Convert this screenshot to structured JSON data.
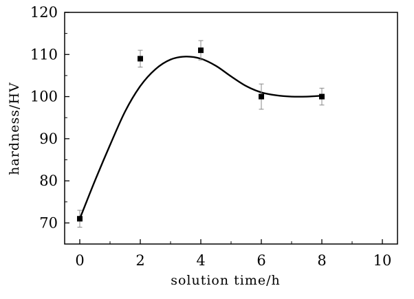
{
  "chart_data": {
    "type": "scatter",
    "xlabel": "solution time/h",
    "ylabel": "hardness/HV",
    "xlim": [
      -0.5,
      10.5
    ],
    "ylim": [
      65,
      120
    ],
    "xticks": [
      0,
      2,
      4,
      6,
      8,
      10
    ],
    "yticks": [
      70,
      80,
      90,
      100,
      110,
      120
    ],
    "grid": false,
    "series": [
      {
        "marker": "square",
        "color": "#000000",
        "x": [
          0,
          2,
          4,
          6,
          8
        ],
        "y": [
          71,
          109,
          111,
          100,
          100
        ],
        "error": [
          2,
          2,
          2.3,
          3,
          2
        ]
      }
    ],
    "fit_curve": {
      "style": "smooth",
      "color": "#000000",
      "x": [
        0,
        0.5,
        1,
        1.5,
        2,
        2.5,
        3,
        3.5,
        4,
        4.5,
        5,
        5.5,
        6,
        6.5,
        7,
        7.5,
        8
      ],
      "y": [
        71,
        80,
        88.5,
        96.5,
        102.5,
        106.5,
        108.8,
        109.5,
        109,
        107.3,
        104.8,
        102.5,
        101,
        100.3,
        100,
        100,
        100.2
      ]
    }
  }
}
